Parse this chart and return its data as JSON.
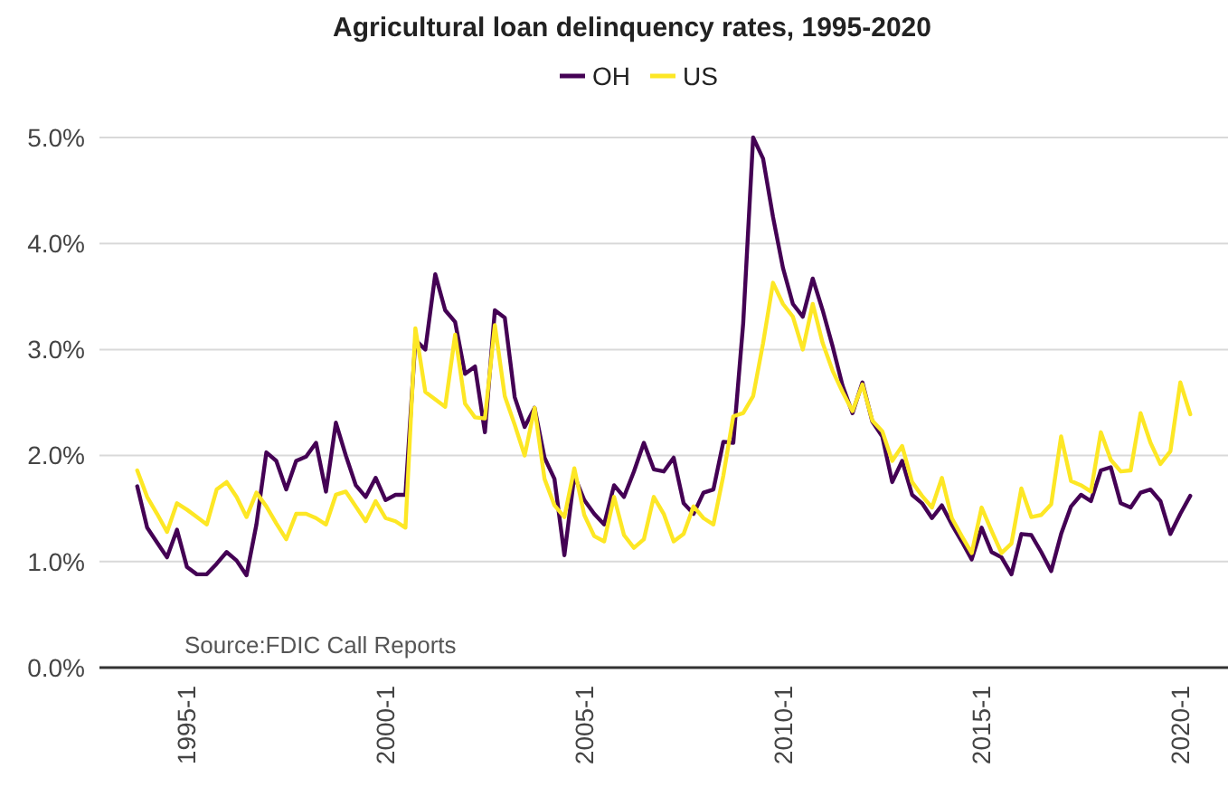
{
  "chart_data": {
    "type": "line",
    "title": "Agricultural loan delinquency rates, 1995-2020",
    "categories": [
      null,
      null,
      null,
      null,
      null,
      "1995-1",
      null,
      null,
      null,
      null,
      null,
      null,
      null,
      null,
      null,
      null,
      null,
      null,
      null,
      null,
      null,
      null,
      null,
      null,
      null,
      "2000-1",
      null,
      null,
      null,
      null,
      null,
      null,
      null,
      null,
      null,
      null,
      null,
      null,
      null,
      null,
      null,
      null,
      null,
      null,
      null,
      "2005-1",
      null,
      null,
      null,
      null,
      null,
      null,
      null,
      null,
      null,
      null,
      null,
      null,
      null,
      null,
      null,
      null,
      null,
      null,
      null,
      "2010-1",
      null,
      null,
      null,
      null,
      null,
      null,
      null,
      null,
      null,
      null,
      null,
      null,
      null,
      null,
      null,
      null,
      null,
      null,
      null,
      "2015-1",
      null,
      null,
      null,
      null,
      null,
      null,
      null,
      null,
      null,
      null,
      null,
      null,
      null,
      null,
      null,
      null,
      null,
      null,
      null,
      "2020-1",
      null
    ],
    "series": [
      {
        "name": "OH",
        "color": "#440154",
        "values": [
          1.71,
          1.32,
          1.18,
          1.04,
          1.3,
          0.95,
          0.88,
          0.88,
          0.98,
          1.09,
          1.01,
          0.87,
          1.35,
          2.03,
          1.95,
          1.68,
          1.95,
          1.99,
          2.12,
          1.66,
          2.31,
          2.0,
          1.72,
          1.61,
          1.79,
          1.58,
          1.63,
          1.63,
          3.09,
          3.0,
          3.71,
          3.37,
          3.26,
          2.77,
          2.84,
          2.22,
          3.37,
          3.3,
          2.55,
          2.27,
          2.45,
          1.98,
          1.78,
          1.06,
          1.81,
          1.58,
          1.45,
          1.35,
          1.72,
          1.61,
          1.85,
          2.12,
          1.87,
          1.85,
          1.98,
          1.55,
          1.45,
          1.65,
          1.68,
          2.13,
          2.12,
          3.25,
          5.0,
          4.8,
          4.25,
          3.77,
          3.43,
          3.31,
          3.67,
          3.37,
          3.03,
          2.66,
          2.4,
          2.69,
          2.32,
          2.18,
          1.75,
          1.95,
          1.63,
          1.55,
          1.41,
          1.53,
          1.35,
          1.19,
          1.02,
          1.32,
          1.09,
          1.04,
          0.88,
          1.26,
          1.25,
          1.09,
          0.91,
          1.26,
          1.52,
          1.63,
          1.57,
          1.86,
          1.89,
          1.55,
          1.51,
          1.65,
          1.68,
          1.57,
          1.26,
          1.45,
          1.62
        ]
      },
      {
        "name": "US",
        "color": "#fde725",
        "values": [
          1.86,
          1.61,
          1.45,
          1.28,
          1.55,
          1.49,
          1.42,
          1.35,
          1.68,
          1.75,
          1.61,
          1.42,
          1.65,
          1.52,
          1.36,
          1.21,
          1.45,
          1.45,
          1.41,
          1.35,
          1.63,
          1.66,
          1.52,
          1.38,
          1.57,
          1.41,
          1.38,
          1.32,
          3.2,
          2.6,
          2.53,
          2.46,
          3.14,
          2.49,
          2.36,
          2.35,
          3.23,
          2.56,
          2.29,
          2.0,
          2.45,
          1.78,
          1.53,
          1.42,
          1.88,
          1.44,
          1.24,
          1.19,
          1.61,
          1.25,
          1.13,
          1.21,
          1.61,
          1.45,
          1.19,
          1.26,
          1.52,
          1.41,
          1.35,
          1.81,
          2.37,
          2.4,
          2.56,
          3.06,
          3.63,
          3.43,
          3.31,
          3.0,
          3.43,
          3.06,
          2.8,
          2.6,
          2.42,
          2.67,
          2.33,
          2.23,
          1.95,
          2.09,
          1.75,
          1.62,
          1.51,
          1.79,
          1.41,
          1.24,
          1.08,
          1.51,
          1.29,
          1.08,
          1.17,
          1.69,
          1.42,
          1.44,
          1.54,
          2.18,
          1.76,
          1.72,
          1.66,
          2.22,
          1.96,
          1.85,
          1.86,
          2.4,
          2.12,
          1.92,
          2.04,
          2.69,
          2.39
        ]
      }
    ],
    "ylim": [
      0,
      5
    ],
    "yticks": [
      {
        "value": 0,
        "label": "0.0%"
      },
      {
        "value": 1,
        "label": "1.0%"
      },
      {
        "value": 2,
        "label": "2.0%"
      },
      {
        "value": 3,
        "label": "3.0%"
      },
      {
        "value": 4,
        "label": "4.0%"
      },
      {
        "value": 5,
        "label": "5.0%"
      }
    ],
    "grid": "y",
    "legend": "top",
    "line_style": "solid",
    "annotations": [
      "Source:FDIC Call Reports"
    ]
  }
}
